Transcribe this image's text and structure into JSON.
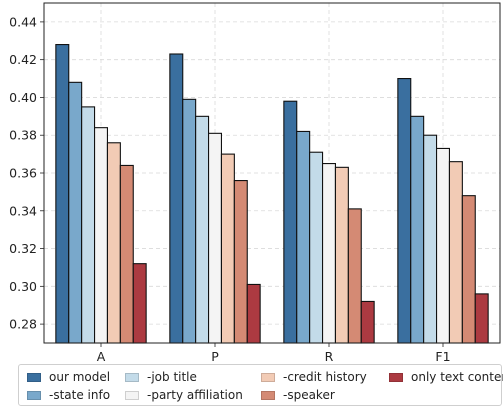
{
  "chart_data": {
    "type": "bar",
    "categories": [
      "A",
      "P",
      "R",
      "F1"
    ],
    "series": [
      {
        "name": "our model",
        "color": "#3a6f9f",
        "values": [
          0.428,
          0.423,
          0.398,
          0.41
        ]
      },
      {
        "name": "-state info",
        "color": "#79a8cb",
        "values": [
          0.408,
          0.399,
          0.382,
          0.39
        ]
      },
      {
        "name": "-job title",
        "color": "#c3dbe9",
        "values": [
          0.395,
          0.39,
          0.371,
          0.38
        ]
      },
      {
        "name": "-party affiliation",
        "color": "#f4f4f4",
        "values": [
          0.384,
          0.381,
          0.365,
          0.373
        ]
      },
      {
        "name": "-credit history",
        "color": "#f2cbb5",
        "values": [
          0.376,
          0.37,
          0.363,
          0.366
        ]
      },
      {
        "name": "-speaker",
        "color": "#d48a74",
        "values": [
          0.364,
          0.356,
          0.341,
          0.348
        ]
      },
      {
        "name": "only text content",
        "color": "#ac3a41",
        "values": [
          0.312,
          0.301,
          0.292,
          0.296
        ]
      }
    ],
    "ylim": [
      0.27,
      0.45
    ],
    "yticks": [
      "0.28",
      "0.30",
      "0.32",
      "0.34",
      "0.36",
      "0.38",
      "0.40",
      "0.42",
      "0.44"
    ],
    "grid": true,
    "legend_position": "bottom",
    "xlabel": "",
    "ylabel": "",
    "title": ""
  }
}
